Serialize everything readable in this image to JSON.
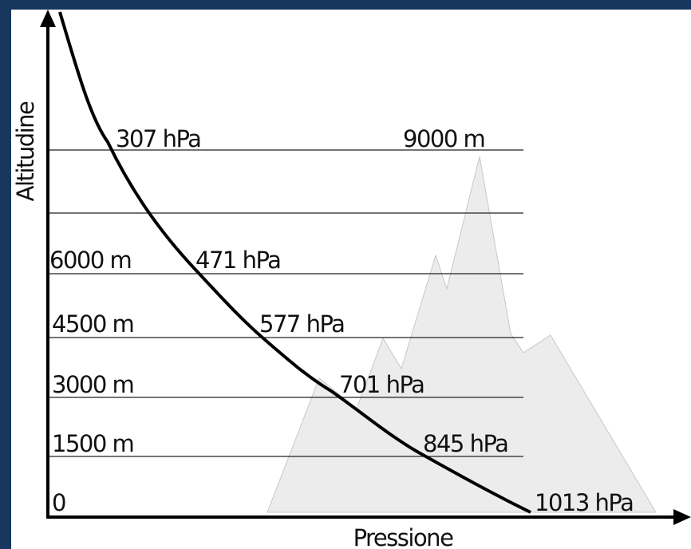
{
  "diagram": {
    "y_axis_label": "Altitudine",
    "x_axis_label": "Pressione",
    "levels": [
      {
        "altitude": "0",
        "pressure": "1013 hPa"
      },
      {
        "altitude": "1500 m",
        "pressure": "845 hPa"
      },
      {
        "altitude": "3000 m",
        "pressure": "701 hPa"
      },
      {
        "altitude": "4500 m",
        "pressure": "577 hPa"
      },
      {
        "altitude": "6000 m",
        "pressure": "471 hPa"
      },
      {
        "altitude": "9000 m",
        "pressure": "307 hPa"
      }
    ]
  }
}
